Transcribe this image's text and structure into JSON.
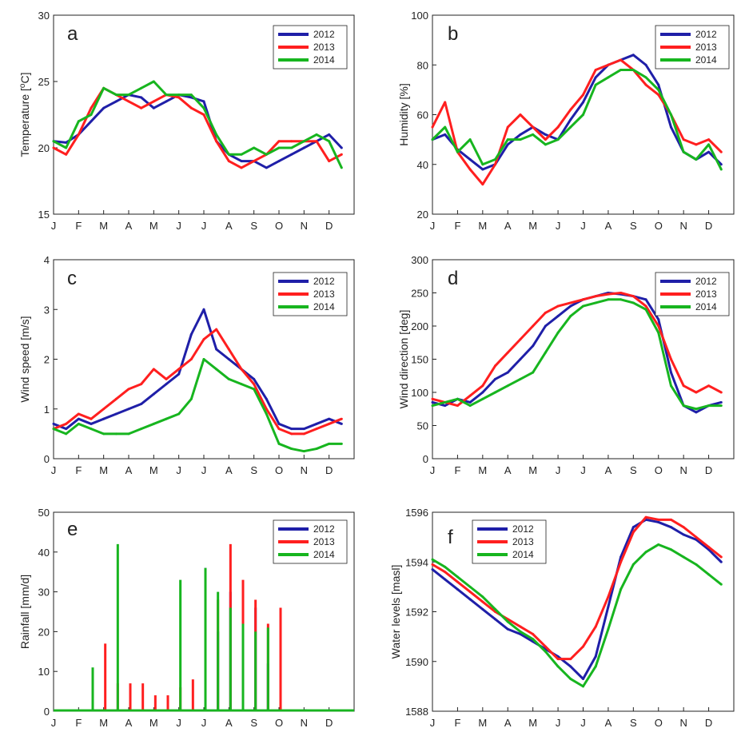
{
  "colors": {
    "2012": "#1f1fa8",
    "2013": "#ff1f1f",
    "2014": "#17b51f",
    "axis": "#222222"
  },
  "chart_data": [
    {
      "type": "line",
      "panel_label": "a",
      "ylabel": "Temperature [°C]",
      "ylabel_pre": "Temperature [",
      "ylabel_sup": "o",
      "ylabel_post": "C]",
      "ylim": [
        15,
        30
      ],
      "yticks": [
        "15",
        "20",
        "25",
        "30"
      ],
      "xticks": [
        "J",
        "F",
        "M",
        "A",
        "M",
        "J",
        "J",
        "A",
        "S",
        "O",
        "N",
        "D"
      ],
      "legend": [
        "2012",
        "2013",
        "2014"
      ],
      "legend_position": "top-right",
      "month_index": [
        0,
        0.5,
        1,
        1.5,
        2,
        2.5,
        3,
        3.5,
        4,
        4.5,
        5,
        5.5,
        6,
        6.5,
        7,
        7.5,
        8,
        8.5,
        9,
        9.5,
        10,
        10.5,
        11,
        11.5
      ],
      "series": [
        {
          "name": "2012",
          "values": [
            20.5,
            20.4,
            21,
            22,
            23,
            23.5,
            24,
            23.8,
            23,
            23.5,
            24,
            23.8,
            23.5,
            20.5,
            19.5,
            19,
            19,
            18.5,
            19,
            19.5,
            20,
            20.5,
            21,
            20
          ]
        },
        {
          "name": "2013",
          "values": [
            20,
            19.5,
            21,
            23,
            24.5,
            24,
            23.5,
            23,
            23.5,
            24,
            23.8,
            23,
            22.5,
            20.5,
            19,
            18.5,
            19,
            19.5,
            20.5,
            20.5,
            20.5,
            20.5,
            19,
            19.5
          ]
        },
        {
          "name": "2014",
          "values": [
            20.5,
            20,
            22,
            22.5,
            24.5,
            24,
            24,
            24.5,
            25,
            24,
            24,
            24,
            23,
            21,
            19.5,
            19.5,
            20,
            19.5,
            20,
            20,
            20.5,
            21,
            20.5,
            18.5
          ]
        }
      ]
    },
    {
      "type": "line",
      "panel_label": "b",
      "ylabel": "Humidity [%]",
      "ylim": [
        20,
        100
      ],
      "yticks": [
        "20",
        "40",
        "60",
        "80",
        "100"
      ],
      "xticks": [
        "J",
        "F",
        "M",
        "A",
        "M",
        "J",
        "J",
        "A",
        "S",
        "O",
        "N",
        "D"
      ],
      "legend": [
        "2012",
        "2013",
        "2014"
      ],
      "legend_position": "top-right",
      "month_index": [
        0,
        0.5,
        1,
        1.5,
        2,
        2.5,
        3,
        3.5,
        4,
        4.5,
        5,
        5.5,
        6,
        6.5,
        7,
        7.5,
        8,
        8.5,
        9,
        9.5,
        10,
        10.5,
        11,
        11.5
      ],
      "series": [
        {
          "name": "2012",
          "values": [
            50,
            52,
            46,
            42,
            38,
            40,
            48,
            52,
            55,
            52,
            50,
            58,
            65,
            75,
            80,
            82,
            84,
            80,
            72,
            55,
            45,
            42,
            45,
            40
          ]
        },
        {
          "name": "2013",
          "values": [
            55,
            65,
            45,
            38,
            32,
            40,
            55,
            60,
            55,
            50,
            55,
            62,
            68,
            78,
            80,
            82,
            78,
            72,
            68,
            60,
            50,
            48,
            50,
            45
          ]
        },
        {
          "name": "2014",
          "values": [
            50,
            55,
            45,
            50,
            40,
            42,
            50,
            50,
            52,
            48,
            50,
            55,
            60,
            72,
            75,
            78,
            78,
            75,
            70,
            60,
            45,
            42,
            48,
            38
          ]
        }
      ]
    },
    {
      "type": "line",
      "panel_label": "c",
      "ylabel": "Wind speed [m/s]",
      "ylim": [
        0,
        4
      ],
      "yticks": [
        "0",
        "1",
        "2",
        "3",
        "4"
      ],
      "xticks": [
        "J",
        "F",
        "M",
        "A",
        "M",
        "J",
        "J",
        "A",
        "S",
        "O",
        "N",
        "D"
      ],
      "legend": [
        "2012",
        "2013",
        "2014"
      ],
      "legend_position": "top-right",
      "month_index": [
        0,
        0.5,
        1,
        1.5,
        2,
        2.5,
        3,
        3.5,
        4,
        4.5,
        5,
        5.5,
        6,
        6.5,
        7,
        7.5,
        8,
        8.5,
        9,
        9.5,
        10,
        10.5,
        11,
        11.5
      ],
      "series": [
        {
          "name": "2012",
          "values": [
            0.7,
            0.6,
            0.8,
            0.7,
            0.8,
            0.9,
            1.0,
            1.1,
            1.3,
            1.5,
            1.7,
            2.5,
            3.0,
            2.2,
            2.0,
            1.8,
            1.6,
            1.2,
            0.7,
            0.6,
            0.6,
            0.7,
            0.8,
            0.7
          ]
        },
        {
          "name": "2013",
          "values": [
            0.6,
            0.7,
            0.9,
            0.8,
            1.0,
            1.2,
            1.4,
            1.5,
            1.8,
            1.6,
            1.8,
            2.0,
            2.4,
            2.6,
            2.2,
            1.8,
            1.5,
            1.0,
            0.6,
            0.5,
            0.5,
            0.6,
            0.7,
            0.8
          ]
        },
        {
          "name": "2014",
          "values": [
            0.6,
            0.5,
            0.7,
            0.6,
            0.5,
            0.5,
            0.5,
            0.6,
            0.7,
            0.8,
            0.9,
            1.2,
            2.0,
            1.8,
            1.6,
            1.5,
            1.4,
            0.9,
            0.3,
            0.2,
            0.15,
            0.2,
            0.3,
            0.3
          ]
        }
      ]
    },
    {
      "type": "line",
      "panel_label": "d",
      "ylabel": "Wind direction [deg]",
      "ylim": [
        0,
        300
      ],
      "yticks": [
        "0",
        "50",
        "100",
        "150",
        "200",
        "250",
        "300"
      ],
      "xticks": [
        "J",
        "F",
        "M",
        "A",
        "M",
        "J",
        "J",
        "A",
        "S",
        "O",
        "N",
        "D"
      ],
      "legend": [
        "2012",
        "2013",
        "2014"
      ],
      "legend_position": "top-right",
      "month_index": [
        0,
        0.5,
        1,
        1.5,
        2,
        2.5,
        3,
        3.5,
        4,
        4.5,
        5,
        5.5,
        6,
        6.5,
        7,
        7.5,
        8,
        8.5,
        9,
        9.5,
        10,
        10.5,
        11,
        11.5
      ],
      "series": [
        {
          "name": "2012",
          "values": [
            85,
            80,
            90,
            85,
            100,
            120,
            130,
            150,
            170,
            200,
            215,
            230,
            240,
            245,
            250,
            248,
            245,
            240,
            210,
            130,
            80,
            70,
            80,
            85
          ]
        },
        {
          "name": "2013",
          "values": [
            90,
            85,
            80,
            95,
            110,
            140,
            160,
            180,
            200,
            220,
            230,
            235,
            240,
            245,
            248,
            250,
            245,
            230,
            200,
            150,
            110,
            100,
            110,
            100
          ]
        },
        {
          "name": "2014",
          "values": [
            80,
            85,
            90,
            80,
            90,
            100,
            110,
            120,
            130,
            160,
            190,
            215,
            230,
            235,
            240,
            240,
            235,
            225,
            190,
            110,
            80,
            75,
            80,
            80
          ]
        }
      ]
    },
    {
      "type": "bar",
      "panel_label": "e",
      "ylabel": "Rainfall [mm/d]",
      "ylim": [
        0,
        50
      ],
      "yticks": [
        "0",
        "10",
        "20",
        "30",
        "40",
        "50"
      ],
      "xticks": [
        "J",
        "F",
        "M",
        "A",
        "M",
        "J",
        "J",
        "A",
        "S",
        "O",
        "N",
        "D"
      ],
      "legend": [
        "2012",
        "2013",
        "2014"
      ],
      "legend_position": "top-right",
      "month_index": [
        0,
        0.5,
        1,
        1.5,
        2,
        2.5,
        3,
        3.5,
        4,
        4.5,
        5,
        5.5,
        6,
        6.5,
        7,
        7.5,
        8,
        8.5,
        9,
        9.5,
        10,
        10.5,
        11,
        11.5
      ],
      "series": [
        {
          "name": "2012",
          "values": [
            0,
            0,
            0,
            0,
            0,
            0,
            0,
            0,
            0,
            0,
            0,
            0,
            36,
            20,
            30,
            28,
            26,
            12,
            0,
            0,
            0.5,
            0,
            0,
            0
          ]
        },
        {
          "name": "2013",
          "values": [
            0,
            0,
            0,
            0,
            17,
            7,
            7,
            7,
            4,
            4,
            6,
            8,
            20,
            28,
            42,
            33,
            28,
            22,
            26,
            0,
            0,
            0,
            0,
            0
          ]
        },
        {
          "name": "2014",
          "values": [
            0,
            0,
            0,
            11,
            0,
            42,
            0,
            0,
            0,
            0,
            33,
            0,
            36,
            30,
            26,
            22,
            20,
            21,
            0,
            0,
            0,
            0,
            0,
            0
          ]
        }
      ]
    },
    {
      "type": "line",
      "panel_label": "f",
      "ylabel": "Water levels [masl]",
      "ylim": [
        1588,
        1596
      ],
      "yticks": [
        "1588",
        "1590",
        "1592",
        "1594",
        "1596"
      ],
      "xticks": [
        "J",
        "F",
        "M",
        "A",
        "M",
        "J",
        "J",
        "A",
        "S",
        "O",
        "N",
        "D"
      ],
      "legend": [
        "2012",
        "2013",
        "2014"
      ],
      "legend_position": "top-left",
      "month_index": [
        0,
        0.5,
        1,
        1.5,
        2,
        2.5,
        3,
        3.5,
        4,
        4.5,
        5,
        5.5,
        6,
        6.5,
        7,
        7.5,
        8,
        8.5,
        9,
        9.5,
        10,
        10.5,
        11,
        11.5
      ],
      "series": [
        {
          "name": "2012",
          "values": [
            1593.7,
            1593.3,
            1592.9,
            1592.5,
            1592.1,
            1591.7,
            1591.3,
            1591.1,
            1590.8,
            1590.5,
            1590.2,
            1589.8,
            1589.3,
            1590.2,
            1592.2,
            1594.2,
            1595.4,
            1595.7,
            1595.6,
            1595.4,
            1595.1,
            1594.9,
            1594.5,
            1594.0
          ]
        },
        {
          "name": "2013",
          "values": [
            1593.9,
            1593.6,
            1593.2,
            1592.8,
            1592.4,
            1592.0,
            1591.7,
            1591.4,
            1591.1,
            1590.6,
            1590.1,
            1590.1,
            1590.6,
            1591.4,
            1592.6,
            1594.0,
            1595.2,
            1595.8,
            1595.7,
            1595.7,
            1595.4,
            1595.0,
            1594.6,
            1594.2
          ]
        },
        {
          "name": "2014",
          "values": [
            1594.1,
            1593.8,
            1593.4,
            1593.0,
            1592.6,
            1592.1,
            1591.6,
            1591.2,
            1590.9,
            1590.4,
            1589.8,
            1589.3,
            1589.0,
            1589.8,
            1591.3,
            1592.9,
            1593.9,
            1594.4,
            1594.7,
            1594.5,
            1594.2,
            1593.9,
            1593.5,
            1593.1
          ]
        }
      ]
    }
  ]
}
